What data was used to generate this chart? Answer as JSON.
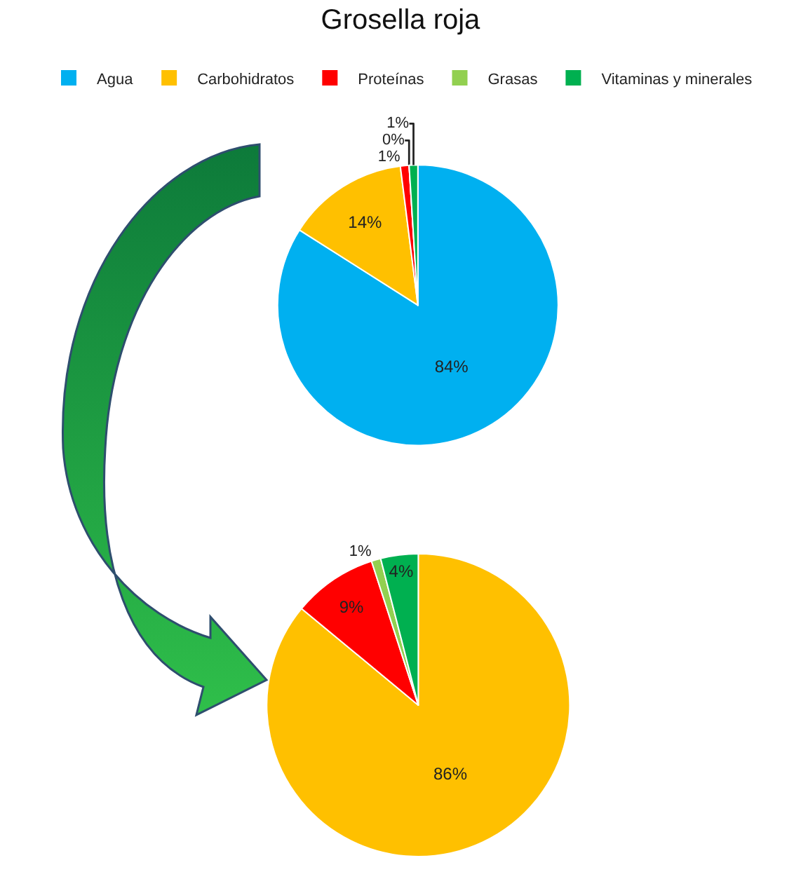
{
  "chart_data": [
    {
      "type": "pie",
      "title": "Grosella roja",
      "categories": [
        "Agua",
        "Carbohidratos",
        "Proteínas",
        "Grasas",
        "Vitaminas y minerales"
      ],
      "values": [
        84,
        14,
        1,
        0,
        1
      ],
      "value_labels": [
        "84%",
        "14%",
        "1%",
        "0%",
        "1%"
      ],
      "colors": [
        "#00b0f0",
        "#ffc000",
        "#ff0000",
        "#92d050",
        "#00b050"
      ],
      "legend": "top"
    },
    {
      "type": "pie",
      "categories": [
        null,
        null,
        null,
        null
      ],
      "values": [
        86,
        9,
        1,
        4
      ],
      "value_labels": [
        "86%",
        "9%",
        "1%",
        "4%"
      ],
      "colors": [
        "#ffc000",
        "#ff0000",
        "#92d050",
        "#00b050"
      ]
    }
  ]
}
